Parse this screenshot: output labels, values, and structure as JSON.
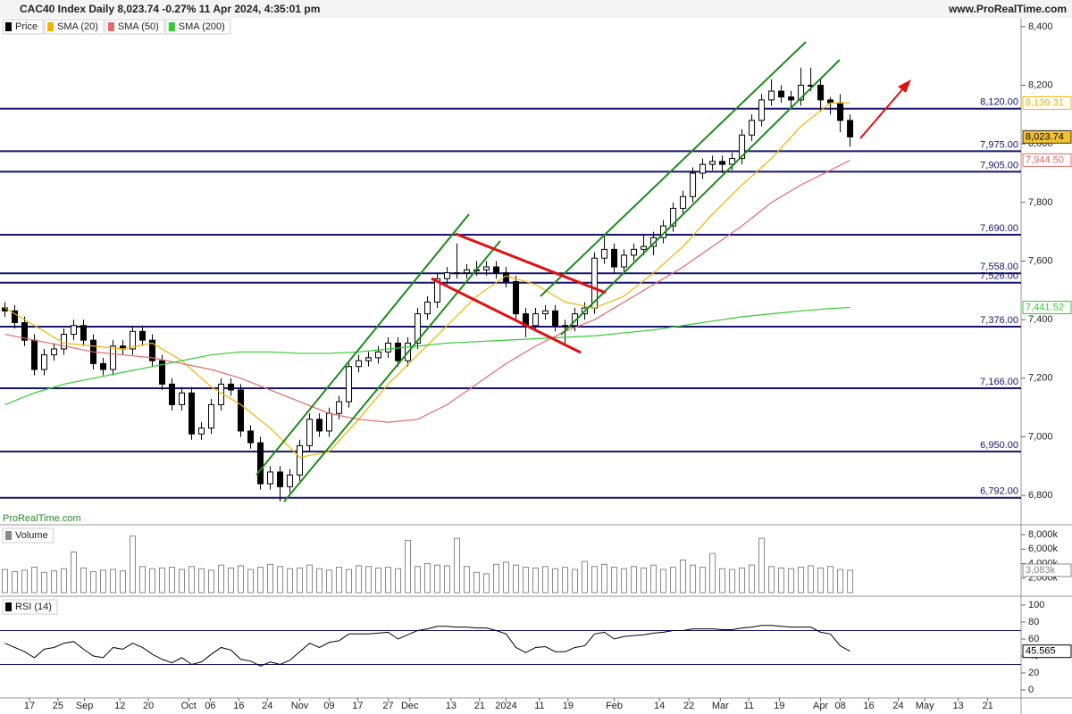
{
  "chart_data": [
    {
      "type": "candlestick",
      "title": "CAC40 Index Daily 8,023.74 -0.27% 11 Apr 2024, 4:35:01 pm",
      "source": "www.ProRealTime.com",
      "watermark": "ProRealTime.com",
      "xlim": [
        -0.5,
        103.4
      ],
      "ylim": [
        6700,
        8430
      ],
      "yticks": [
        {
          "value": 6800,
          "label": "6,800"
        },
        {
          "value": 7000,
          "label": "7,000"
        },
        {
          "value": 7200,
          "label": "7,200"
        },
        {
          "value": 7400,
          "label": "7,400"
        },
        {
          "value": 7600,
          "label": "7,600"
        },
        {
          "value": 7800,
          "label": "7,800"
        },
        {
          "value": 8000,
          "label": "8,000"
        },
        {
          "value": 8200,
          "label": "8,200"
        },
        {
          "value": 8400,
          "label": "8,400"
        }
      ],
      "levels": [
        {
          "value": 8120,
          "label": "8,120.00"
        },
        {
          "value": 7975,
          "label": "7,975.00"
        },
        {
          "value": 7905,
          "label": "7,905.00"
        },
        {
          "value": 7690,
          "label": "7,690.00"
        },
        {
          "value": 7558,
          "label": "7,558.00"
        },
        {
          "value": 7526,
          "label": "7,526.00"
        },
        {
          "value": 7376,
          "label": "7,376.00"
        },
        {
          "value": 7166,
          "label": "7,166.00"
        },
        {
          "value": 6950,
          "label": "6,950.00"
        },
        {
          "value": 6792,
          "label": "6,792.00"
        }
      ],
      "series": [
        {
          "name": "Price",
          "color": "#000000",
          "last_value_label": "8,023.74",
          "open": [
            7440,
            7430,
            7390,
            7330,
            7230,
            7280,
            7300,
            7350,
            7380,
            7330,
            7250,
            7230,
            7310,
            7300,
            7360,
            7330,
            7260,
            7180,
            7110,
            7150,
            7010,
            7030,
            7110,
            7180,
            7160,
            7020,
            6980,
            6840,
            6880,
            6830,
            6870,
            6970,
            7060,
            7020,
            7080,
            7120,
            7240,
            7260,
            7270,
            7290,
            7320,
            7260,
            7320,
            7420,
            7460,
            7540,
            7560,
            7560,
            7570,
            7570,
            7580,
            7560,
            7530,
            7420,
            7380,
            7420,
            7430,
            7380,
            7380,
            7420,
            7440,
            7610,
            7640,
            7580,
            7620,
            7640,
            7650,
            7680,
            7720,
            7780,
            7820,
            7900,
            7930,
            7940,
            7930,
            7950,
            8030,
            8080,
            8150,
            8180,
            8160,
            8150,
            8200,
            8200,
            8150,
            8140,
            8080
          ],
          "high": [
            7460,
            7450,
            7410,
            7350,
            7300,
            7320,
            7370,
            7400,
            7400,
            7350,
            7270,
            7330,
            7330,
            7380,
            7380,
            7350,
            7280,
            7200,
            7170,
            7170,
            7050,
            7130,
            7200,
            7200,
            7180,
            7040,
            7000,
            6900,
            6900,
            6890,
            6990,
            7080,
            7080,
            7100,
            7140,
            7260,
            7280,
            7290,
            7310,
            7340,
            7340,
            7340,
            7440,
            7480,
            7560,
            7580,
            7660,
            7590,
            7600,
            7600,
            7600,
            7580,
            7550,
            7440,
            7440,
            7450,
            7450,
            7400,
            7440,
            7460,
            7630,
            7690,
            7660,
            7640,
            7660,
            7690,
            7700,
            7740,
            7800,
            7840,
            7920,
            7950,
            7960,
            7960,
            7970,
            8050,
            8100,
            8170,
            8220,
            8200,
            8180,
            8260,
            8260,
            8220,
            8160,
            8170,
            8100
          ],
          "low": [
            7410,
            7370,
            7310,
            7210,
            7210,
            7260,
            7280,
            7330,
            7310,
            7230,
            7210,
            7210,
            7280,
            7280,
            7310,
            7240,
            7160,
            7090,
            7090,
            6990,
            6990,
            7010,
            7090,
            7140,
            7000,
            6960,
            6820,
            6820,
            6780,
            6810,
            6850,
            6950,
            7000,
            7000,
            7060,
            7100,
            7220,
            7240,
            7250,
            7270,
            7240,
            7240,
            7300,
            7400,
            7440,
            7520,
            7540,
            7540,
            7550,
            7550,
            7540,
            7510,
            7400,
            7340,
            7360,
            7400,
            7360,
            7310,
            7360,
            7400,
            7420,
            7590,
            7560,
            7560,
            7600,
            7620,
            7620,
            7660,
            7700,
            7760,
            7800,
            7880,
            7910,
            7900,
            7910,
            7930,
            8010,
            8060,
            8130,
            8140,
            8120,
            8130,
            8180,
            8110,
            8100,
            8040,
            7990
          ],
          "close": [
            7430,
            7390,
            7330,
            7230,
            7280,
            7300,
            7350,
            7380,
            7330,
            7250,
            7230,
            7310,
            7300,
            7360,
            7330,
            7260,
            7180,
            7110,
            7150,
            7010,
            7030,
            7110,
            7180,
            7160,
            7020,
            6980,
            6840,
            6880,
            6830,
            6870,
            6970,
            7060,
            7020,
            7080,
            7120,
            7240,
            7260,
            7270,
            7290,
            7320,
            7260,
            7320,
            7420,
            7460,
            7540,
            7560,
            7560,
            7570,
            7570,
            7580,
            7560,
            7530,
            7420,
            7380,
            7420,
            7430,
            7380,
            7380,
            7420,
            7440,
            7610,
            7640,
            7580,
            7620,
            7640,
            7650,
            7680,
            7720,
            7780,
            7820,
            7900,
            7930,
            7940,
            7930,
            7950,
            8030,
            8080,
            8150,
            8180,
            8160,
            8150,
            8200,
            8200,
            8150,
            8140,
            8080,
            8023.74
          ]
        },
        {
          "name": "SMA (20)",
          "color": "#f0b400",
          "last_value_label": "8,139.31",
          "x": [
            0,
            3,
            6,
            9,
            12,
            15,
            18,
            21,
            24,
            27,
            30,
            33,
            36,
            39,
            42,
            45,
            48,
            51,
            54,
            57,
            60,
            63,
            66,
            69,
            72,
            75,
            78,
            81,
            84,
            86
          ],
          "values": [
            7440,
            7380,
            7320,
            7310,
            7300,
            7320,
            7260,
            7170,
            7110,
            7030,
            6930,
            6950,
            7060,
            7180,
            7280,
            7380,
            7480,
            7550,
            7520,
            7460,
            7440,
            7480,
            7560,
            7650,
            7760,
            7860,
            7950,
            8060,
            8140,
            8139.31
          ]
        },
        {
          "name": "SMA (50)",
          "color": "#e06b6b",
          "last_value_label": "7,944.50",
          "x": [
            0,
            3,
            6,
            9,
            12,
            15,
            18,
            21,
            24,
            27,
            30,
            33,
            36,
            39,
            42,
            45,
            48,
            51,
            54,
            57,
            60,
            63,
            66,
            69,
            72,
            75,
            78,
            81,
            84,
            86
          ],
          "values": [
            7350,
            7330,
            7310,
            7290,
            7280,
            7270,
            7250,
            7230,
            7200,
            7160,
            7120,
            7080,
            7060,
            7050,
            7060,
            7110,
            7180,
            7250,
            7310,
            7360,
            7400,
            7460,
            7520,
            7580,
            7650,
            7720,
            7800,
            7860,
            7910,
            7944.5
          ]
        },
        {
          "name": "SMA (200)",
          "color": "#33cc33",
          "last_value_label": "7,441.52",
          "x": [
            0,
            3,
            6,
            9,
            12,
            15,
            18,
            21,
            24,
            27,
            30,
            33,
            36,
            39,
            42,
            45,
            48,
            51,
            54,
            57,
            60,
            63,
            66,
            69,
            72,
            75,
            78,
            81,
            84,
            86
          ],
          "values": [
            7110,
            7150,
            7180,
            7200,
            7220,
            7240,
            7260,
            7280,
            7290,
            7290,
            7285,
            7285,
            7290,
            7300,
            7310,
            7320,
            7325,
            7330,
            7335,
            7340,
            7345,
            7355,
            7365,
            7380,
            7395,
            7410,
            7420,
            7430,
            7438,
            7441.52
          ]
        }
      ]
    },
    {
      "type": "bar",
      "xlim": [
        -0.5,
        103.4
      ],
      "ylim": [
        -490,
        9110
      ],
      "yticks": [
        {
          "value": 2000,
          "label": "2,000k"
        },
        {
          "value": 4000,
          "label": "4,000k"
        },
        {
          "value": 6000,
          "label": "6,000k"
        },
        {
          "value": 8000,
          "label": "8,000k"
        }
      ],
      "series": [
        {
          "name": "Volume",
          "color": "#888888",
          "last_value_label": "3,083k",
          "values": [
            3200,
            2900,
            3100,
            3500,
            2800,
            3000,
            3300,
            5600,
            3400,
            2900,
            3100,
            3200,
            3000,
            7800,
            3600,
            3300,
            3400,
            3500,
            3200,
            3600,
            3300,
            3100,
            3800,
            3400,
            3700,
            3200,
            3500,
            3900,
            3600,
            3300,
            3400,
            3800,
            3300,
            3100,
            3500,
            3200,
            3700,
            3600,
            3400,
            3500,
            3300,
            7200,
            3600,
            4000,
            3800,
            3700,
            7500,
            3600,
            2800,
            2600,
            3900,
            4200,
            3800,
            3500,
            3400,
            3600,
            3300,
            3500,
            3200,
            4300,
            3600,
            3900,
            3500,
            3300,
            3600,
            3400,
            3800,
            3200,
            3500,
            4500,
            3800,
            3500,
            5400,
            3300,
            3200,
            3400,
            3800,
            7500,
            3600,
            3400,
            3300,
            3500,
            3700,
            3400,
            3600,
            3200,
            3083
          ]
        }
      ]
    },
    {
      "type": "line",
      "xlim": [
        -0.5,
        103.4
      ],
      "ylim": [
        -9.5,
        108.4
      ],
      "yticks": [
        0,
        20,
        40,
        60,
        80,
        100
      ],
      "levels": [
        70,
        30
      ],
      "xticks": [
        {
          "value": 2.5,
          "label": "17"
        },
        {
          "value": 5.4,
          "label": "25"
        },
        {
          "value": 8.1,
          "label": "Sep"
        },
        {
          "value": 11.7,
          "label": "12"
        },
        {
          "value": 14.6,
          "label": "20"
        },
        {
          "value": 18.7,
          "label": "Oct"
        },
        {
          "value": 20.9,
          "label": "06"
        },
        {
          "value": 23.8,
          "label": "16"
        },
        {
          "value": 26.7,
          "label": "24"
        },
        {
          "value": 30,
          "label": "Nov"
        },
        {
          "value": 33,
          "label": "09"
        },
        {
          "value": 35.9,
          "label": "17"
        },
        {
          "value": 39,
          "label": "27"
        },
        {
          "value": 41.2,
          "label": "Dec"
        },
        {
          "value": 45.4,
          "label": "13"
        },
        {
          "value": 48.3,
          "label": "21"
        },
        {
          "value": 51,
          "label": "2024"
        },
        {
          "value": 54.4,
          "label": "11"
        },
        {
          "value": 57.3,
          "label": "19"
        },
        {
          "value": 62,
          "label": "Feb"
        },
        {
          "value": 66.6,
          "label": "14"
        },
        {
          "value": 69.6,
          "label": "22"
        },
        {
          "value": 72.8,
          "label": "Mar"
        },
        {
          "value": 75.7,
          "label": "11"
        },
        {
          "value": 78.8,
          "label": "19"
        },
        {
          "value": 83,
          "label": "Apr"
        },
        {
          "value": 85,
          "label": "08"
        },
        {
          "value": 87.9,
          "label": "16"
        },
        {
          "value": 90.9,
          "label": "24"
        },
        {
          "value": 93.6,
          "label": "May"
        },
        {
          "value": 97,
          "label": "13"
        },
        {
          "value": 100,
          "label": "21"
        }
      ],
      "series": [
        {
          "name": "RSI (14)",
          "color": "#000000",
          "last_value_label": "45.565",
          "values": [
            55,
            50,
            45,
            38,
            48,
            50,
            55,
            57,
            48,
            40,
            38,
            50,
            48,
            55,
            50,
            42,
            36,
            32,
            38,
            30,
            33,
            42,
            50,
            47,
            36,
            34,
            28,
            33,
            30,
            35,
            45,
            55,
            50,
            56,
            58,
            66,
            66,
            66,
            67,
            68,
            60,
            65,
            70,
            72,
            75,
            75,
            74,
            74,
            73,
            73,
            70,
            66,
            50,
            44,
            50,
            51,
            45,
            45,
            50,
            52,
            66,
            68,
            60,
            63,
            64,
            65,
            67,
            68,
            70,
            70,
            72,
            72,
            72,
            71,
            71,
            73,
            74,
            76,
            76,
            75,
            74,
            74,
            74,
            68,
            66,
            52,
            45.565
          ]
        }
      ]
    }
  ]
}
